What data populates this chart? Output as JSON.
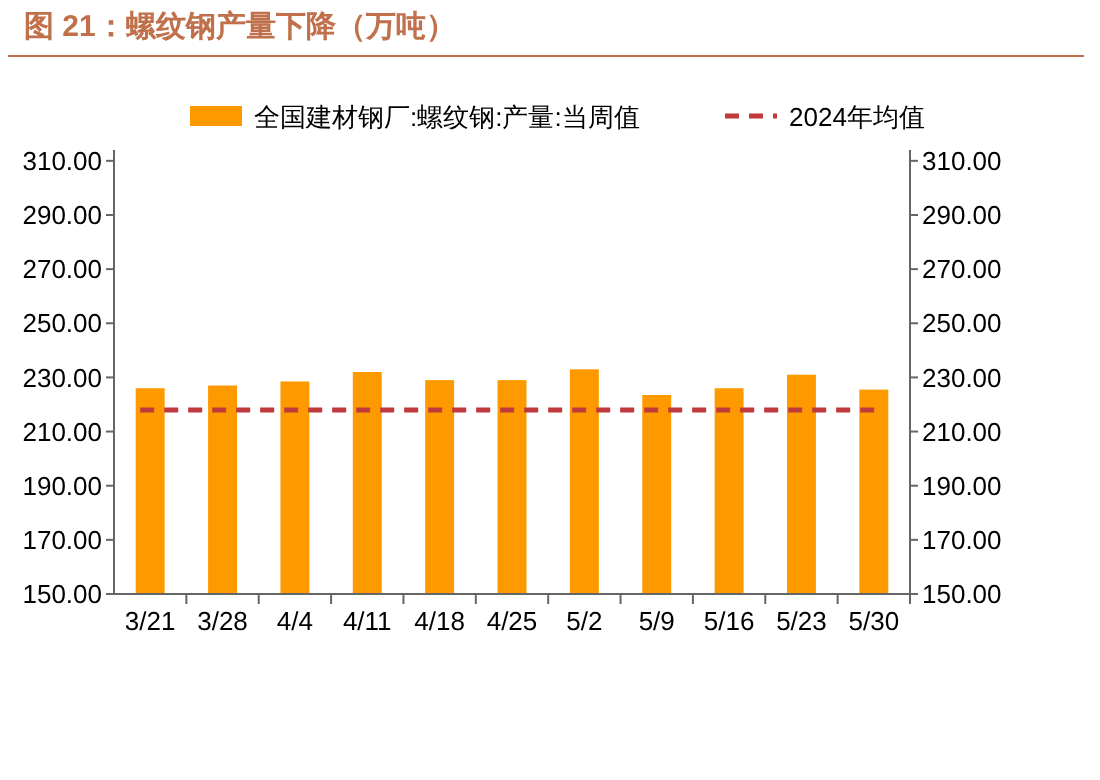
{
  "chart_data": {
    "type": "bar",
    "title": "图 21：螺纹钢产量下降（万吨）",
    "categories": [
      "3/21",
      "3/28",
      "4/4",
      "4/11",
      "4/18",
      "4/25",
      "5/2",
      "5/9",
      "5/16",
      "5/23",
      "5/30"
    ],
    "series": [
      {
        "name": "全国建材钢厂:螺纹钢:产量:当周值",
        "color": "#ff9900",
        "values": [
          226,
          227,
          228.5,
          232,
          229,
          229,
          233,
          223.5,
          226,
          231,
          225.5
        ]
      }
    ],
    "ylim": [
      150,
      314
    ],
    "yticks": [
      {
        "value": 150,
        "label": "150.00"
      },
      {
        "value": 170,
        "label": "170.00"
      },
      {
        "value": 190,
        "label": "190.00"
      },
      {
        "value": 210,
        "label": "210.00"
      },
      {
        "value": 230,
        "label": "230.00"
      },
      {
        "value": 250,
        "label": "250.00"
      },
      {
        "value": 270,
        "label": "270.00"
      },
      {
        "value": 290,
        "label": "290.00"
      },
      {
        "value": 310,
        "label": "310.00"
      }
    ],
    "y2lim": [
      150,
      314
    ],
    "y2ticks": [
      {
        "value": 150,
        "label": "150.00"
      },
      {
        "value": 170,
        "label": "170.00"
      },
      {
        "value": 190,
        "label": "190.00"
      },
      {
        "value": 210,
        "label": "210.00"
      },
      {
        "value": 230,
        "label": "230.00"
      },
      {
        "value": 250,
        "label": "250.00"
      },
      {
        "value": 270,
        "label": "270.00"
      },
      {
        "value": 290,
        "label": "290.00"
      },
      {
        "value": 310,
        "label": "310.00"
      }
    ],
    "ref_lines": [
      {
        "axis": "y",
        "value": 218,
        "label": "2024年均值",
        "color": "#c0393b",
        "line_style": "dashed"
      }
    ],
    "legend": "top",
    "grid": false
  }
}
